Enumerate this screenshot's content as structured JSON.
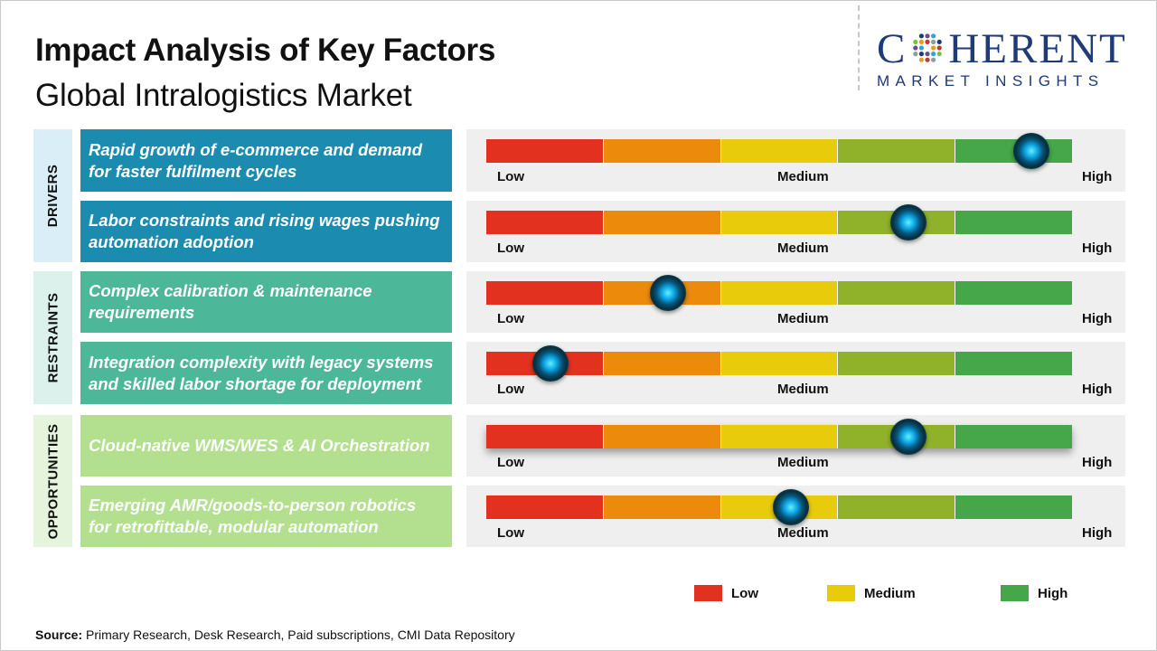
{
  "title": "Impact Analysis of Key Factors",
  "subtitle": "Global Intralogistics Market",
  "logo": {
    "word_left": "C",
    "word_right": "HERENT",
    "tagline": "MARKET INSIGHTS"
  },
  "colors": {
    "scale": [
      "#e2321f",
      "#ec8a0c",
      "#e8cb0a",
      "#8fb22a",
      "#45a64a"
    ],
    "drivers_category": "#d9eef7",
    "drivers_factor": "#1c8bb0",
    "restraints_category": "#dcf0ec",
    "restraints_factor": "#4db899",
    "opportunities_category": "#e5f4dc",
    "opportunities_factor": "#b2e08e",
    "brand": "#1f3a78"
  },
  "scale_labels": {
    "low": "Low",
    "medium": "Medium",
    "high": "High"
  },
  "chart_data": {
    "type": "bar",
    "title": "Impact Analysis of Key Factors",
    "subtitle": "Global Intralogistics Market",
    "scale": [
      "Low",
      "Medium",
      "High"
    ],
    "xlim": [
      0,
      1
    ],
    "groups": [
      {
        "category": "DRIVERS",
        "factors": [
          {
            "label": "Rapid growth of e-commerce and demand for faster fulfilment cycles",
            "impact": 0.93
          },
          {
            "label": "Labor constraints and rising wages pushing automation adoption",
            "impact": 0.72
          }
        ]
      },
      {
        "category": "RESTRAINTS",
        "factors": [
          {
            "label": "Complex calibration & maintenance requirements",
            "impact": 0.31
          },
          {
            "label": "Integration complexity with legacy systems and skilled labor shortage for deployment",
            "impact": 0.11
          }
        ]
      },
      {
        "category": "OPPORTUNITIES",
        "factors": [
          {
            "label": "Cloud-native WMS/WES & AI Orchestration",
            "impact": 0.72
          },
          {
            "label": "Emerging AMR/goods-to-person robotics for retrofittable, modular automation",
            "impact": 0.52
          }
        ]
      }
    ],
    "legend": [
      {
        "label": "Low",
        "color": "#e2321f"
      },
      {
        "label": "Medium",
        "color": "#e8cb0a"
      },
      {
        "label": "High",
        "color": "#45a64a"
      }
    ],
    "legend_position": "bottom-right"
  },
  "source": {
    "label": "Source:",
    "text": " Primary Research, Desk Research, Paid subscriptions, CMI Data Repository"
  }
}
